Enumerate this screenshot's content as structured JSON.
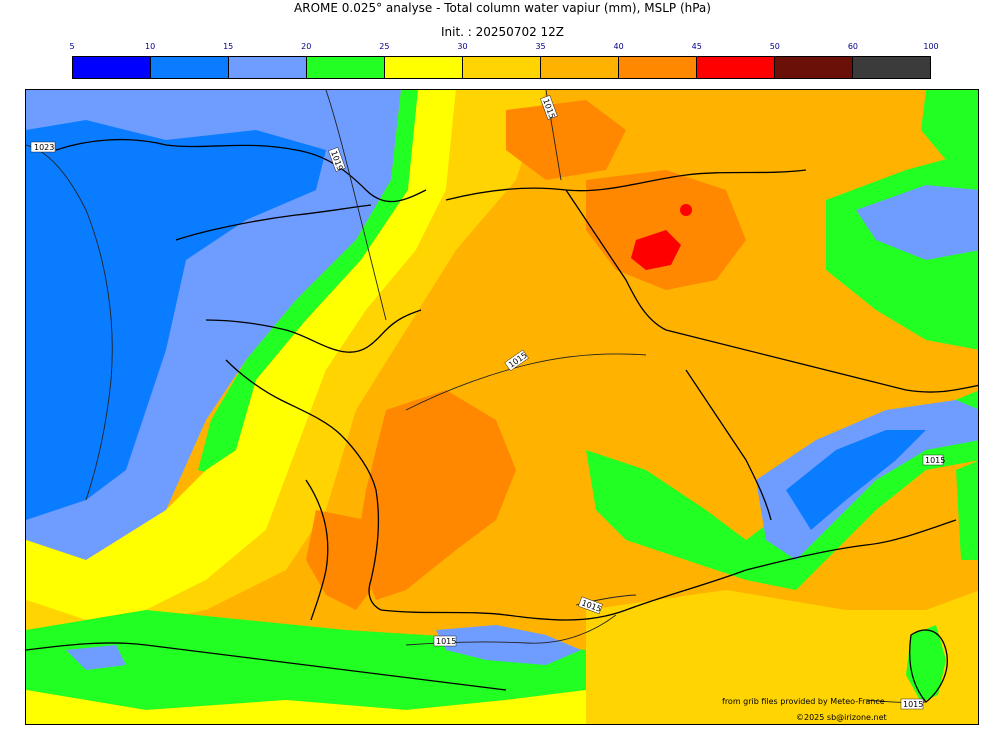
{
  "title": "AROME 0.025° analyse - Total column water vapiur (mm), MSLP (hPa)",
  "init": "Init. : 20250702 12Z",
  "colorbar": {
    "ticks": [
      "5",
      "10",
      "15",
      "20",
      "25",
      "30",
      "35",
      "40",
      "45",
      "50",
      "60",
      "100"
    ],
    "colors": [
      "#0000ff",
      "#0a7cff",
      "#6f9cff",
      "#22ff22",
      "#ffff00",
      "#ffd400",
      "#ffb300",
      "#ff8800",
      "#ff0000",
      "#6b1008",
      "#3b3b3b"
    ]
  },
  "isobars": [
    {
      "label": "1023"
    },
    {
      "label": "1019"
    },
    {
      "label": "1015"
    },
    {
      "label": "1015"
    },
    {
      "label": "1015"
    },
    {
      "label": "1015"
    },
    {
      "label": "1015"
    },
    {
      "label": "1015"
    }
  ],
  "credits": {
    "source": "from grib files provided by Meteo-France",
    "copyright": "©2025 sb@irizone.net"
  }
}
